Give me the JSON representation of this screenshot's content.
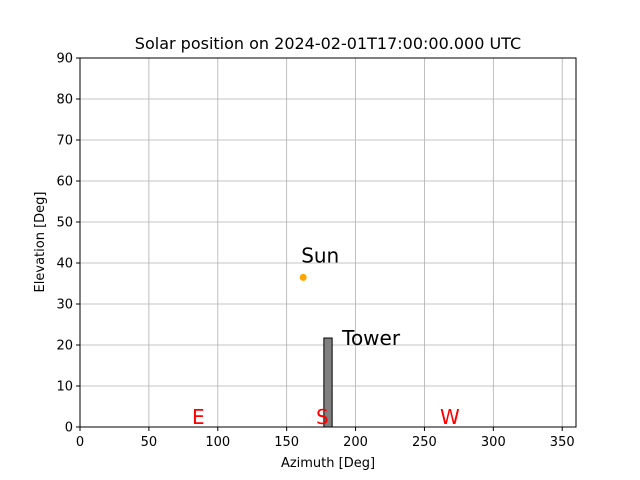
{
  "chart_data": {
    "type": "scatter",
    "title": "Solar position on 2024-02-01T17:00:00.000 UTC",
    "xlabel": "Azimuth [Deg]",
    "ylabel": "Elevation [Deg]",
    "xlim": [
      0,
      360
    ],
    "ylim": [
      0,
      90
    ],
    "xticks": [
      0,
      50,
      100,
      150,
      200,
      250,
      300,
      350
    ],
    "yticks": [
      0,
      10,
      20,
      30,
      40,
      50,
      60,
      70,
      80,
      90
    ],
    "grid": true,
    "sun": {
      "label": "Sun",
      "azimuth": 162,
      "elevation": 36.5,
      "color": "#ffa500"
    },
    "tower": {
      "label": "Tower",
      "azimuth_start": 177,
      "azimuth_end": 183,
      "height": 21.7,
      "color": "#808080"
    },
    "directions": [
      {
        "label": "E",
        "azimuth": 90,
        "elevation": 0,
        "color": "#ff0000"
      },
      {
        "label": "S",
        "azimuth": 180,
        "elevation": 0,
        "color": "#ff0000"
      },
      {
        "label": "W",
        "azimuth": 270,
        "elevation": 0,
        "color": "#ff0000"
      }
    ]
  }
}
